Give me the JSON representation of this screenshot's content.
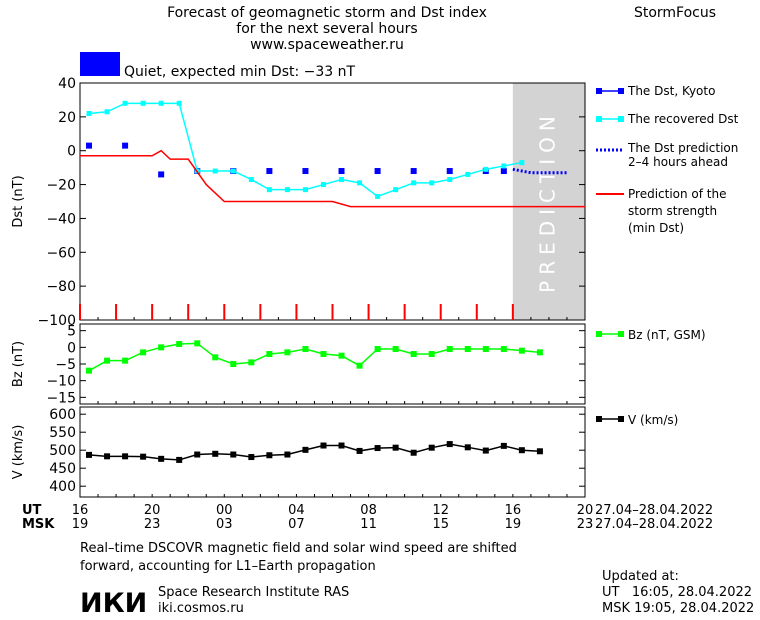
{
  "header": {
    "title_lines": [
      "Forecast of geomagnetic storm and Dst index",
      "for the next several hours",
      "www.spaceweather.ru"
    ],
    "brand": "StormFocus"
  },
  "status": {
    "text": "Quiet, expected min Dst: −33 nT",
    "color": "#0000ff"
  },
  "legend": {
    "dst_kyoto": "The Dst, Kyoto",
    "recovered": "The recovered Dst",
    "prediction_lines": [
      "The Dst prediction",
      "2–4 hours ahead"
    ],
    "strength_lines": [
      "Prediction of the",
      "storm strength",
      "(min Dst)"
    ],
    "bz": "Bz (nT, GSM)",
    "v": "V (km/s)"
  },
  "time_axis": {
    "ut_label": "UT",
    "msk_label": "MSK",
    "ut_ticks": [
      "16",
      "20",
      "00",
      "04",
      "08",
      "12",
      "16",
      "20"
    ],
    "msk_ticks": [
      "19",
      "23",
      "03",
      "07",
      "11",
      "15",
      "19",
      "23"
    ],
    "ut_range": "27.04–28.04.2022",
    "msk_range": "27.04–28.04.2022"
  },
  "prediction_label": "PREDICTION",
  "footer": {
    "note_lines": [
      "Real–time DSCOVR magnetic field and solar wind speed are shifted",
      "forward, accounting for L1–Earth propagation"
    ],
    "logo_text": "ИКИ",
    "institute": "Space Research Institute RAS",
    "site": "iki.cosmos.ru",
    "updated_label": "Updated at:",
    "updated_ut": "UT   16:05, 28.04.2022",
    "updated_msk": "MSK 19:05, 28.04.2022"
  },
  "colors": {
    "dst": "#0000ff",
    "recovered": "#00ffff",
    "prediction": "#0000ff",
    "strength": "#ff0000",
    "bz": "#00ff00",
    "v": "#000000",
    "ticks": "#ff0000",
    "shade": "#d3d3d3"
  },
  "chart_data": [
    {
      "type": "line",
      "name": "Dst panel",
      "ylabel": "Dst (nT)",
      "ylim": [
        -100,
        40
      ],
      "yticks": [
        40,
        20,
        0,
        -20,
        -40,
        -60,
        -80,
        -100
      ],
      "xlim_hours": [
        16,
        44
      ],
      "prediction_region_hours": [
        40,
        44
      ],
      "series": [
        {
          "name": "The Dst, Kyoto",
          "x": [
            16.5,
            18.5,
            20.5,
            22.5,
            24.5,
            26.5,
            28.5,
            30.5,
            32.5,
            34.5,
            36.5,
            38.5,
            39.5
          ],
          "values": [
            3,
            3,
            -14,
            -12,
            -12,
            -12,
            -12,
            -12,
            -12,
            -12,
            -12,
            -12,
            -12
          ]
        },
        {
          "name": "The recovered Dst",
          "x": [
            16.5,
            17.5,
            18.5,
            19.5,
            20.5,
            21.5,
            22.5,
            23.5,
            24.5,
            25.5,
            26.5,
            27.5,
            28.5,
            29.5,
            30.5,
            31.5,
            32.5,
            33.5,
            34.5,
            35.5,
            36.5,
            37.5,
            38.5,
            39.5,
            40.5
          ],
          "values": [
            22,
            23,
            28,
            28,
            28,
            28,
            -12,
            -12,
            -12,
            -17,
            -23,
            -23,
            -23,
            -20,
            -17,
            -19,
            -27,
            -23,
            -19,
            -19,
            -17,
            -14,
            -11,
            -9,
            -7
          ]
        },
        {
          "name": "The Dst prediction 2–4 hours ahead",
          "x": [
            40.0,
            40.5,
            41.0,
            41.5,
            42.0,
            42.5,
            43.0
          ],
          "values": [
            -11,
            -12,
            -13,
            -13,
            -13,
            -13,
            -13
          ]
        },
        {
          "name": "Prediction of the storm strength (min Dst)",
          "x": [
            16,
            20,
            20.5,
            21,
            22,
            23,
            24,
            25,
            26,
            27,
            28,
            29,
            30,
            31,
            32,
            33,
            34,
            35,
            36,
            37,
            38,
            39,
            40,
            41,
            42,
            43,
            44
          ],
          "values": [
            -3,
            -3,
            0,
            -5,
            -5,
            -20,
            -30,
            -30,
            -30,
            -30,
            -30,
            -30,
            -30,
            -33,
            -33,
            -33,
            -33,
            -33,
            -33,
            -33,
            -33,
            -33,
            -33,
            -33,
            -33,
            -33,
            -33
          ]
        }
      ]
    },
    {
      "type": "line",
      "name": "Bz panel",
      "ylabel": "Bz (nT)",
      "ylim": [
        -17,
        7
      ],
      "yticks": [
        5,
        0,
        -5,
        -10,
        -15
      ],
      "series": [
        {
          "name": "Bz (nT, GSM)",
          "x": [
            16.5,
            17.5,
            18.5,
            19.5,
            20.5,
            21.5,
            22.5,
            23.5,
            24.5,
            25.5,
            26.5,
            27.5,
            28.5,
            29.5,
            30.5,
            31.5,
            32.5,
            33.5,
            34.5,
            35.5,
            36.5,
            37.5,
            38.5,
            39.5,
            40.5,
            41.5
          ],
          "values": [
            -7,
            -4,
            -4,
            -1.5,
            0,
            1,
            1.2,
            -3,
            -5,
            -4.5,
            -2,
            -1.5,
            -0.5,
            -2,
            -2.5,
            -5.5,
            -0.5,
            -0.5,
            -2,
            -2,
            -0.5,
            -0.5,
            -0.5,
            -0.5,
            -1,
            -1.5
          ]
        }
      ]
    },
    {
      "type": "line",
      "name": "V panel",
      "ylabel": "V (km/s)",
      "ylim": [
        370,
        620
      ],
      "yticks": [
        600,
        550,
        500,
        450,
        400
      ],
      "series": [
        {
          "name": "V (km/s)",
          "x": [
            16.5,
            17.5,
            18.5,
            19.5,
            20.5,
            21.5,
            22.5,
            23.5,
            24.5,
            25.5,
            26.5,
            27.5,
            28.5,
            29.5,
            30.5,
            31.5,
            32.5,
            33.5,
            34.5,
            35.5,
            36.5,
            37.5,
            38.5,
            39.5,
            40.5,
            41.5
          ],
          "values": [
            487,
            483,
            483,
            482,
            476,
            473,
            488,
            490,
            488,
            481,
            486,
            488,
            501,
            513,
            513,
            498,
            506,
            507,
            493,
            507,
            517,
            508,
            499,
            512,
            500,
            497
          ]
        }
      ]
    }
  ]
}
